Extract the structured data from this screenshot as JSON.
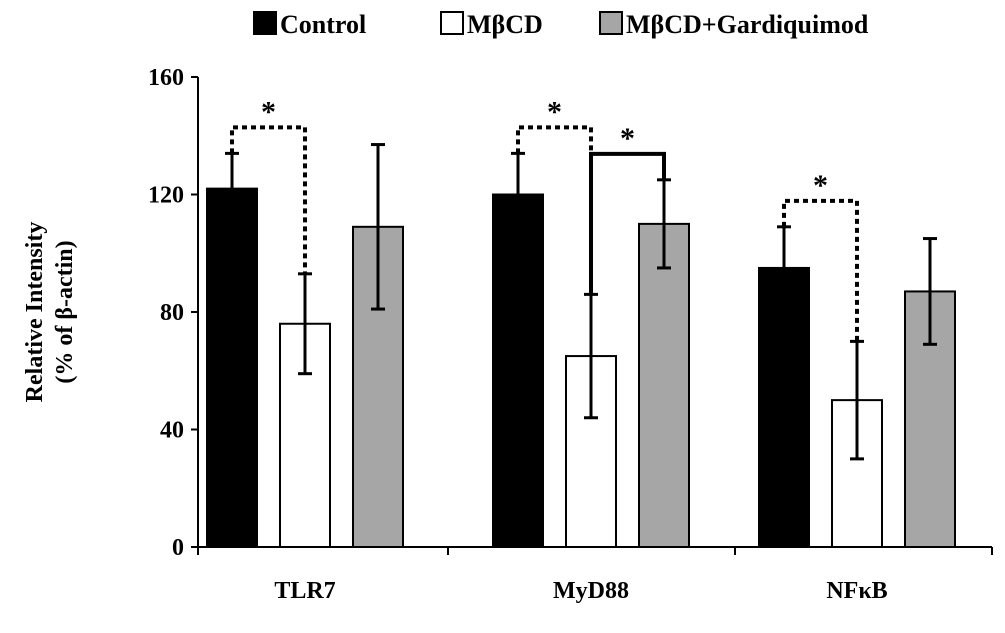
{
  "chart_data": {
    "type": "bar",
    "categories": [
      "TLR7",
      "MyD88",
      "NFκB"
    ],
    "series": [
      {
        "name": "Control",
        "color": "#000000",
        "values": [
          122,
          120,
          95
        ],
        "errors": [
          12,
          14,
          14
        ]
      },
      {
        "name": "MβCD",
        "color": "#ffffff",
        "values": [
          76,
          65,
          50
        ],
        "errors": [
          17,
          21,
          20
        ]
      },
      {
        "name": "MβCD+Gardiquimod",
        "color": "#a6a6a6",
        "values": [
          109,
          110,
          87
        ],
        "errors": [
          28,
          15,
          18
        ]
      }
    ],
    "ylabel_line1": "Relative Intensity",
    "ylabel_line2": "(% of β-actin)",
    "ylim": [
      0,
      160
    ],
    "yticks": [
      "0",
      "40",
      "80",
      "120",
      "160"
    ],
    "legend_position": "top",
    "grid": false,
    "significance": [
      {
        "category": 0,
        "from_series": 0,
        "to_series": 1,
        "marker": "*",
        "style": "dotted"
      },
      {
        "category": 1,
        "from_series": 0,
        "to_series": 1,
        "marker": "*",
        "style": "dotted"
      },
      {
        "category": 1,
        "from_series": 1,
        "to_series": 2,
        "marker": "*",
        "style": "solid"
      },
      {
        "category": 2,
        "from_series": 0,
        "to_series": 1,
        "marker": "*",
        "style": "dotted"
      }
    ]
  }
}
